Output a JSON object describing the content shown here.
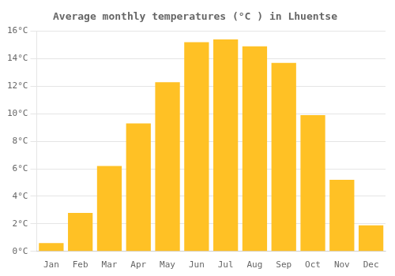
{
  "chart_data": {
    "type": "bar",
    "title": "Average monthly temperatures (°C ) in Lhuentse",
    "categories": [
      "Jan",
      "Feb",
      "Mar",
      "Apr",
      "May",
      "Jun",
      "Jul",
      "Aug",
      "Sep",
      "Oct",
      "Nov",
      "Dec"
    ],
    "values": [
      0.6,
      2.8,
      6.2,
      9.3,
      12.3,
      15.2,
      15.4,
      14.9,
      13.7,
      9.9,
      5.2,
      1.9
    ],
    "color": "#FFC125",
    "ylim": [
      0,
      16
    ],
    "yticks": [
      {
        "value": 0,
        "label": "0°C"
      },
      {
        "value": 2,
        "label": "2°C"
      },
      {
        "value": 4,
        "label": "4°C"
      },
      {
        "value": 6,
        "label": "6°C"
      },
      {
        "value": 8,
        "label": "8°C"
      },
      {
        "value": 10,
        "label": "10°C"
      },
      {
        "value": 12,
        "label": "12°C"
      },
      {
        "value": 14,
        "label": "14°C"
      },
      {
        "value": 16,
        "label": "16°C"
      }
    ],
    "grid": true
  }
}
